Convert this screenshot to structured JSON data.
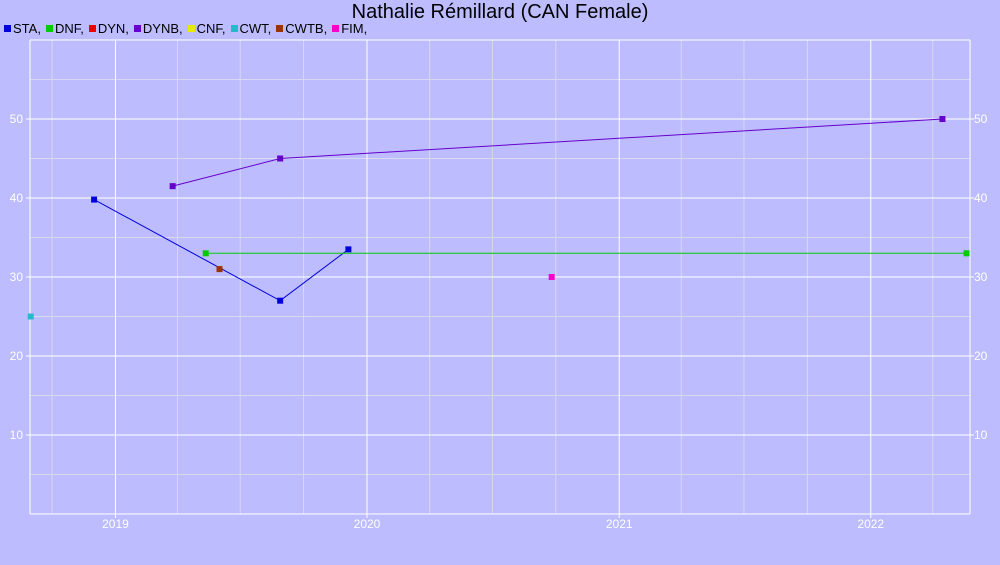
{
  "chart_data": {
    "type": "line",
    "title": "Nathalie Rémillard (CAN Female)",
    "xlabel": "",
    "ylabel": "",
    "x_axis_type": "date",
    "xlim": [
      "2018-08-30",
      "2022-05-25"
    ],
    "ylim": [
      0,
      60
    ],
    "x_ticks": [
      {
        "label": "2019",
        "date": "2019-01-01"
      },
      {
        "label": "2020",
        "date": "2020-01-01"
      },
      {
        "label": "2021",
        "date": "2021-01-01"
      },
      {
        "label": "2022",
        "date": "2022-01-01"
      }
    ],
    "y_ticks": [
      10,
      20,
      30,
      40,
      50
    ],
    "grid": true,
    "legend_position": "top-left",
    "series": [
      {
        "name": "STA",
        "color": "#0000dd",
        "points": [
          {
            "x": "2018-12-01",
            "y": 39.8
          },
          {
            "x": "2019-08-28",
            "y": 27
          },
          {
            "x": "2019-12-05",
            "y": 33.5
          }
        ]
      },
      {
        "name": "DNF",
        "color": "#00cc00",
        "points": [
          {
            "x": "2019-05-12",
            "y": 33
          },
          {
            "x": "2022-05-20",
            "y": 33
          }
        ]
      },
      {
        "name": "DYN",
        "color": "#ee0000",
        "points": []
      },
      {
        "name": "DYNB",
        "color": "#6600cc",
        "points": [
          {
            "x": "2019-03-25",
            "y": 41.5
          },
          {
            "x": "2019-08-28",
            "y": 45
          },
          {
            "x": "2022-04-15",
            "y": 50
          }
        ]
      },
      {
        "name": "CNF",
        "color": "#e8e800",
        "points": []
      },
      {
        "name": "CWT",
        "color": "#22bbcc",
        "points": [
          {
            "x": "2018-08-31",
            "y": 25
          }
        ]
      },
      {
        "name": "CWTB",
        "color": "#993300",
        "points": [
          {
            "x": "2019-06-01",
            "y": 31
          }
        ]
      },
      {
        "name": "FIM",
        "color": "#ff00cc",
        "points": [
          {
            "x": "2020-09-25",
            "y": 30
          }
        ]
      }
    ]
  }
}
